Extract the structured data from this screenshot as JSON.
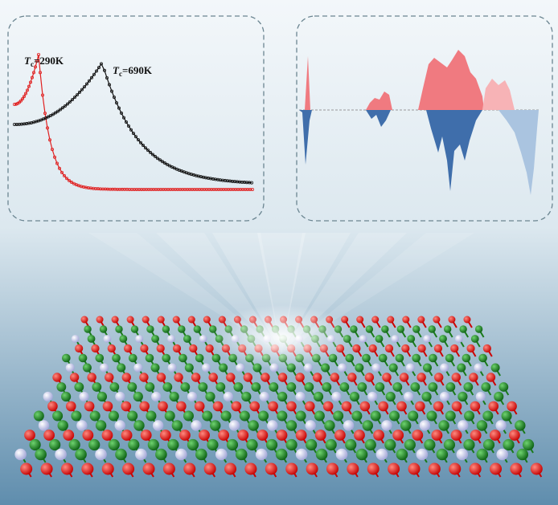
{
  "insets": {
    "left": {
      "labels": [
        {
          "symbol": "T",
          "subscript": "c",
          "text": "=290K"
        },
        {
          "symbol": "T",
          "subscript": "c",
          "text": "=690K"
        }
      ]
    }
  }
}
